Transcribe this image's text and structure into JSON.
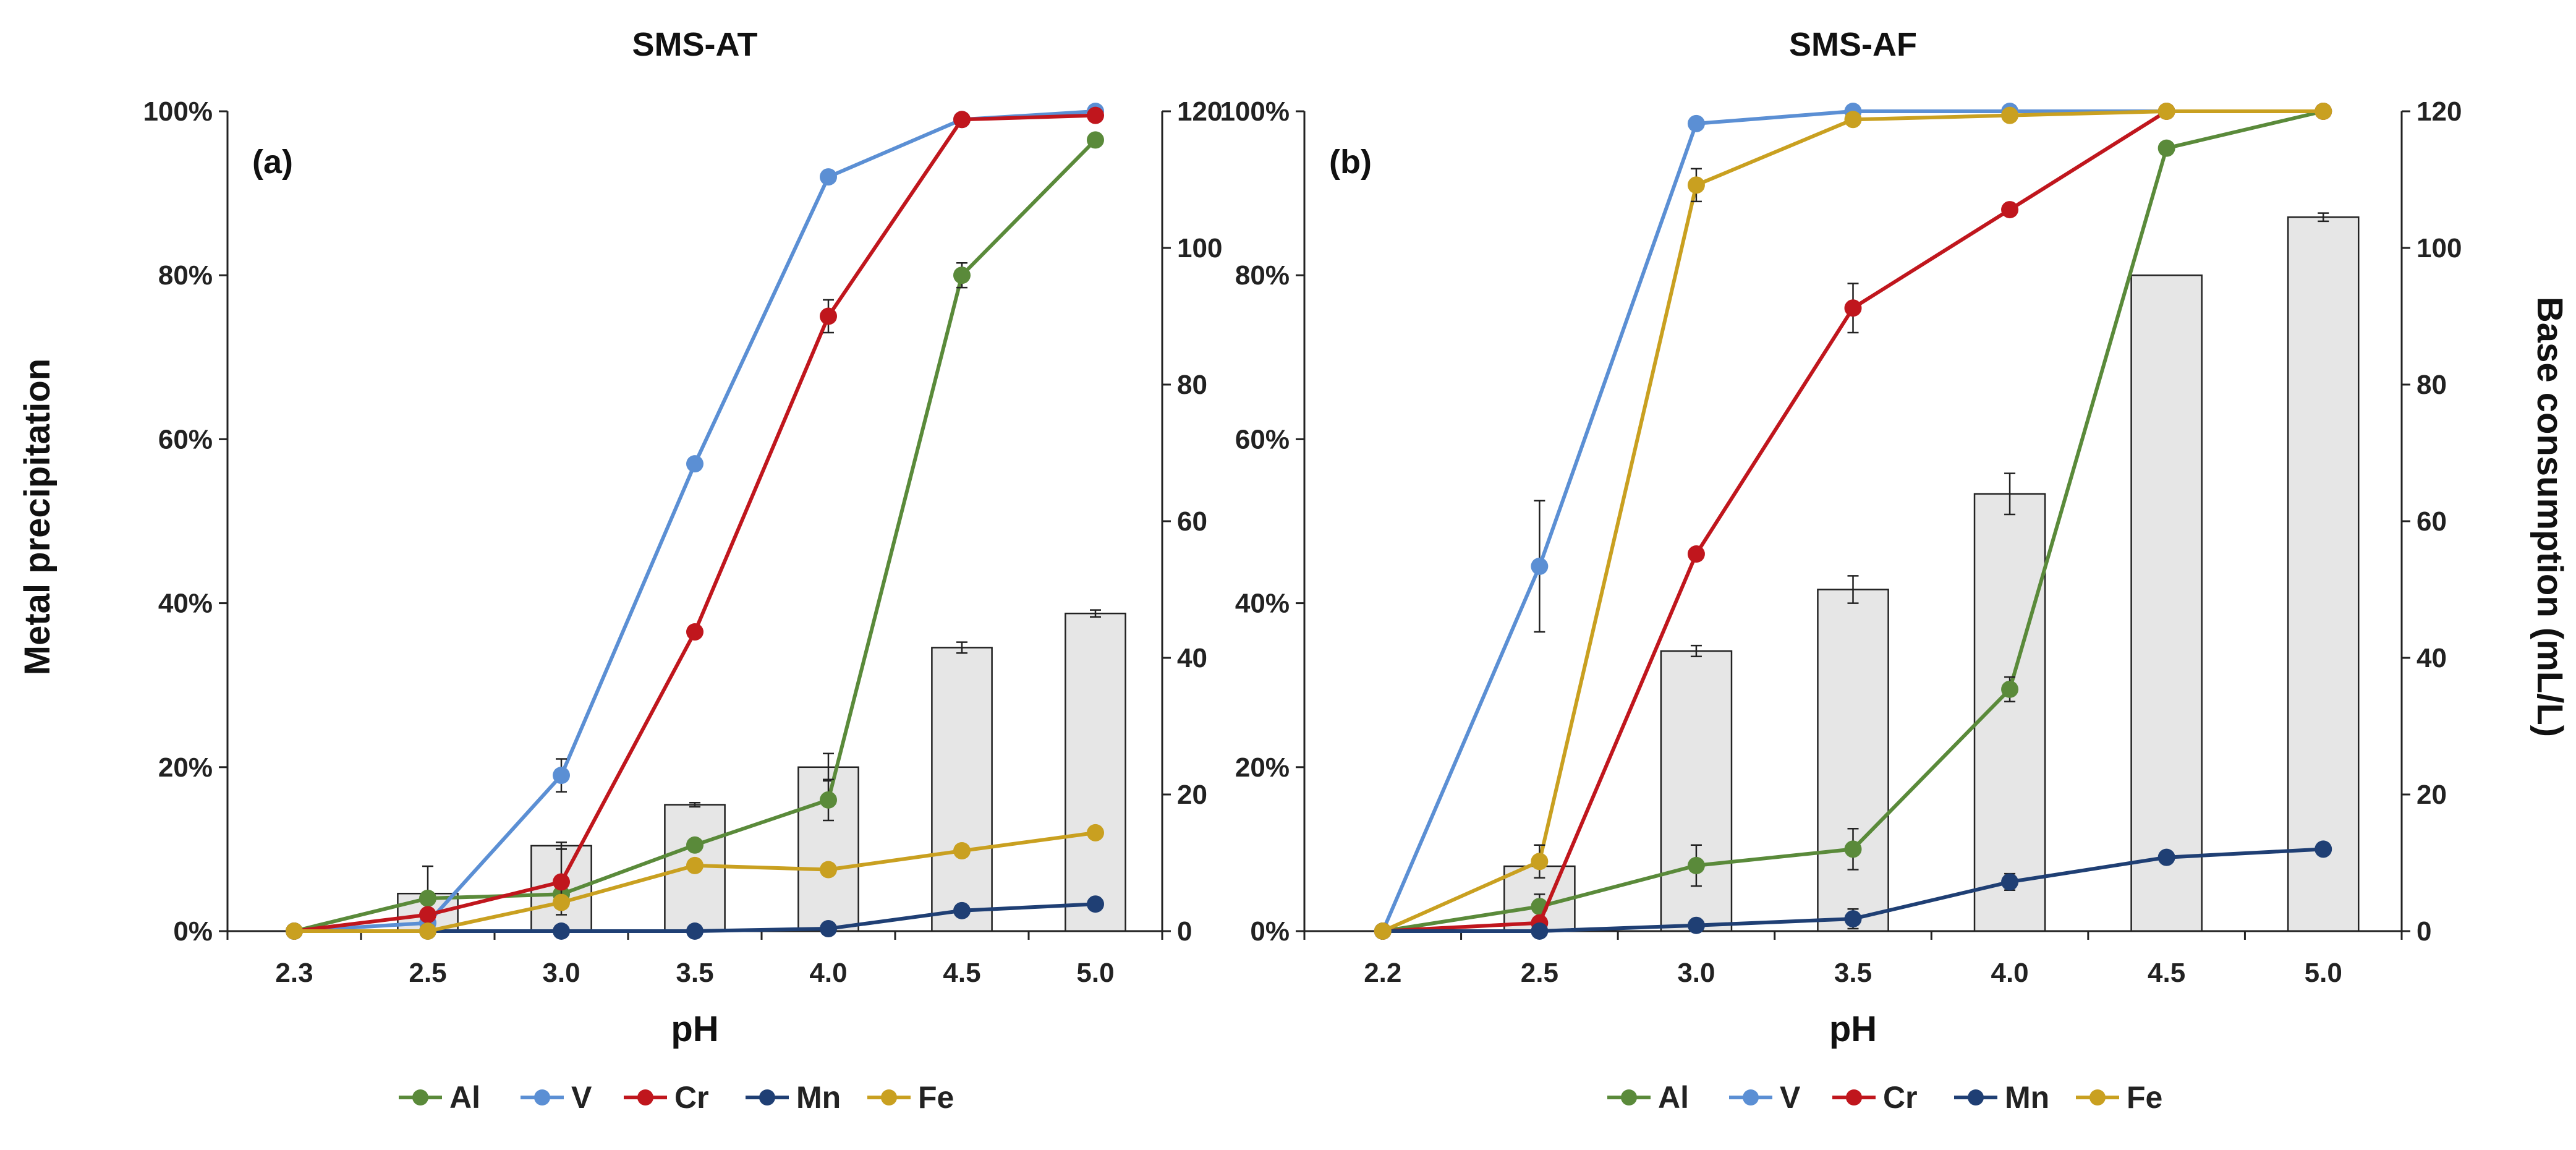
{
  "figure": {
    "y_left_label": "Metal precipitation",
    "y_right_label": "Base consumption (mL/L)"
  },
  "chart_data": [
    {
      "type": "bar+line",
      "title": "SMS-AT",
      "panel_label": "(a)",
      "xlabel": "pH",
      "ylabel": "Metal precipitation",
      "y2label": "Base consumption (mL/L)",
      "categories": [
        "2.3",
        "2.5",
        "3.0",
        "3.5",
        "4.0",
        "4.5",
        "5.0"
      ],
      "ylim": [
        0,
        100
      ],
      "yticks": [
        "0%",
        "20%",
        "40%",
        "60%",
        "80%",
        "100%"
      ],
      "y2lim": [
        0,
        120
      ],
      "y2ticks": [
        "0",
        "20",
        "40",
        "60",
        "80",
        "100",
        "120"
      ],
      "bars": {
        "name": "Base consumption",
        "values": [
          0,
          5.5,
          12.5,
          18.5,
          24,
          41.5,
          46.5
        ],
        "errors": [
          0,
          4,
          0.5,
          0.3,
          2,
          0.8,
          0.5
        ]
      },
      "series": [
        {
          "name": "Al",
          "color": "#5a8a3a",
          "values": [
            0,
            4,
            4.5,
            10.5,
            16,
            80,
            96.5
          ],
          "errors": [
            0,
            0,
            0,
            0,
            2.5,
            1.5,
            0
          ]
        },
        {
          "name": "V",
          "color": "#5b8fd4",
          "values": [
            0,
            1,
            19,
            57,
            92,
            99,
            100
          ],
          "errors": [
            0,
            0,
            2,
            0,
            0,
            0,
            0
          ]
        },
        {
          "name": "Cr",
          "color": "#c0161d",
          "values": [
            0,
            2,
            6,
            36.5,
            75,
            99,
            99.5
          ],
          "errors": [
            0,
            0,
            4,
            0,
            2,
            0,
            0
          ]
        },
        {
          "name": "Mn",
          "color": "#1f3f74",
          "values": [
            0,
            0,
            0,
            0,
            0.3,
            2.5,
            3.3
          ],
          "errors": [
            0,
            0,
            0,
            0,
            0,
            0,
            0
          ]
        },
        {
          "name": "Fe",
          "color": "#c9a020",
          "values": [
            0,
            0,
            3.5,
            8,
            7.5,
            9.8,
            12
          ],
          "errors": [
            0,
            0,
            0,
            0,
            0,
            0,
            0
          ]
        }
      ]
    },
    {
      "type": "bar+line",
      "title": "SMS-AF",
      "panel_label": "(b)",
      "xlabel": "pH",
      "ylabel": "Metal precipitation",
      "y2label": "Base consumption (mL/L)",
      "categories": [
        "2.2",
        "2.5",
        "3.0",
        "3.5",
        "4.0",
        "4.5",
        "5.0"
      ],
      "ylim": [
        0,
        100
      ],
      "yticks": [
        "0%",
        "20%",
        "40%",
        "60%",
        "80%",
        "100%"
      ],
      "y2lim": [
        0,
        120
      ],
      "y2ticks": [
        "0",
        "20",
        "40",
        "60",
        "80",
        "100",
        "120"
      ],
      "bars": {
        "name": "Base consumption",
        "values": [
          0,
          9.5,
          41,
          50,
          64,
          96,
          104.5
        ],
        "errors": [
          0,
          0,
          0.8,
          2,
          3,
          0,
          0.6
        ]
      },
      "series": [
        {
          "name": "Al",
          "color": "#5a8a3a",
          "values": [
            0,
            3,
            8,
            10,
            29.5,
            95.5,
            100
          ],
          "errors": [
            0,
            1.5,
            2.5,
            2.5,
            1.5,
            0,
            0
          ]
        },
        {
          "name": "V",
          "color": "#5b8fd4",
          "values": [
            0,
            44.5,
            98.5,
            100,
            100,
            100,
            100
          ],
          "errors": [
            0,
            8,
            0,
            0,
            0,
            0,
            0
          ]
        },
        {
          "name": "Cr",
          "color": "#c0161d",
          "values": [
            0,
            1,
            46,
            76,
            88,
            100,
            100
          ],
          "errors": [
            0,
            0,
            0,
            3,
            0,
            0,
            0
          ]
        },
        {
          "name": "Mn",
          "color": "#1f3f74",
          "values": [
            0,
            0,
            0.7,
            1.5,
            6,
            9,
            10
          ],
          "errors": [
            0,
            0,
            0,
            1.2,
            1,
            0,
            0
          ]
        },
        {
          "name": "Fe",
          "color": "#c9a020",
          "values": [
            0,
            8.5,
            91,
            99,
            99.5,
            100,
            100
          ],
          "errors": [
            0,
            2,
            2,
            0,
            0,
            0,
            0
          ]
        }
      ]
    }
  ]
}
